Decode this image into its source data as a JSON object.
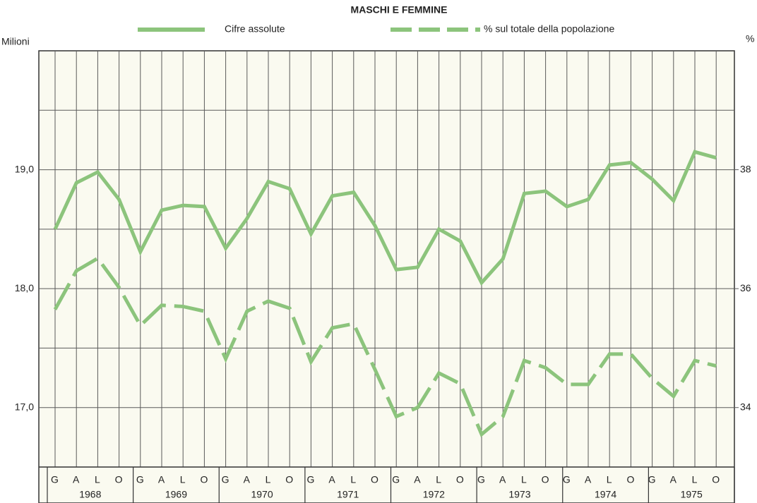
{
  "chart_data": {
    "type": "line",
    "title": "MASCHI E FEMMINE",
    "y_label": "Milioni",
    "y2_label": "%",
    "categories": [
      "G",
      "A",
      "L",
      "O",
      "G",
      "A",
      "L",
      "O",
      "G",
      "A",
      "L",
      "O",
      "G",
      "A",
      "L",
      "O",
      "G",
      "A",
      "L",
      "O",
      "G",
      "A",
      "L",
      "O",
      "G",
      "A",
      "L",
      "O",
      "G",
      "A",
      "L",
      "O"
    ],
    "years": [
      "1968",
      "1969",
      "1970",
      "1971",
      "1972",
      "1973",
      "1974",
      "1975"
    ],
    "series": [
      {
        "name": "Cifre assolute",
        "color": "#8cc47c",
        "style": "solid",
        "values": [
          18.5,
          18.89,
          18.98,
          18.75,
          18.31,
          18.66,
          18.7,
          18.69,
          18.34,
          18.59,
          18.9,
          18.84,
          18.46,
          18.78,
          18.81,
          18.53,
          18.16,
          18.18,
          18.5,
          18.4,
          18.05,
          18.25,
          18.8,
          18.82,
          18.69,
          18.75,
          19.04,
          19.06,
          18.92,
          18.74,
          19.15,
          19.1
        ]
      },
      {
        "name": "% sul totale della popolazione",
        "color": "#8cc47c",
        "style": "dashed",
        "axis": "y2",
        "values": [
          35.65,
          36.3,
          36.51,
          36.02,
          35.38,
          35.72,
          35.7,
          35.62,
          34.82,
          35.62,
          35.79,
          35.67,
          34.77,
          35.34,
          35.41,
          34.64,
          33.85,
          34.0,
          34.58,
          34.4,
          33.55,
          33.85,
          34.79,
          34.67,
          34.39,
          34.39,
          34.9,
          34.9,
          34.49,
          34.19,
          34.79,
          34.7
        ]
      }
    ],
    "ylim": [
      16.5,
      20.0
    ],
    "yticks": [
      {
        "value": 17,
        "label": "17,0"
      },
      {
        "value": 18,
        "label": "18,0"
      },
      {
        "value": 19,
        "label": "19,0"
      }
    ],
    "minor_yticks": [
      17.5,
      18.5,
      19.5
    ],
    "y2lim": [
      33,
      40
    ],
    "y2ticks": [
      34,
      36,
      38
    ],
    "grid": true
  }
}
